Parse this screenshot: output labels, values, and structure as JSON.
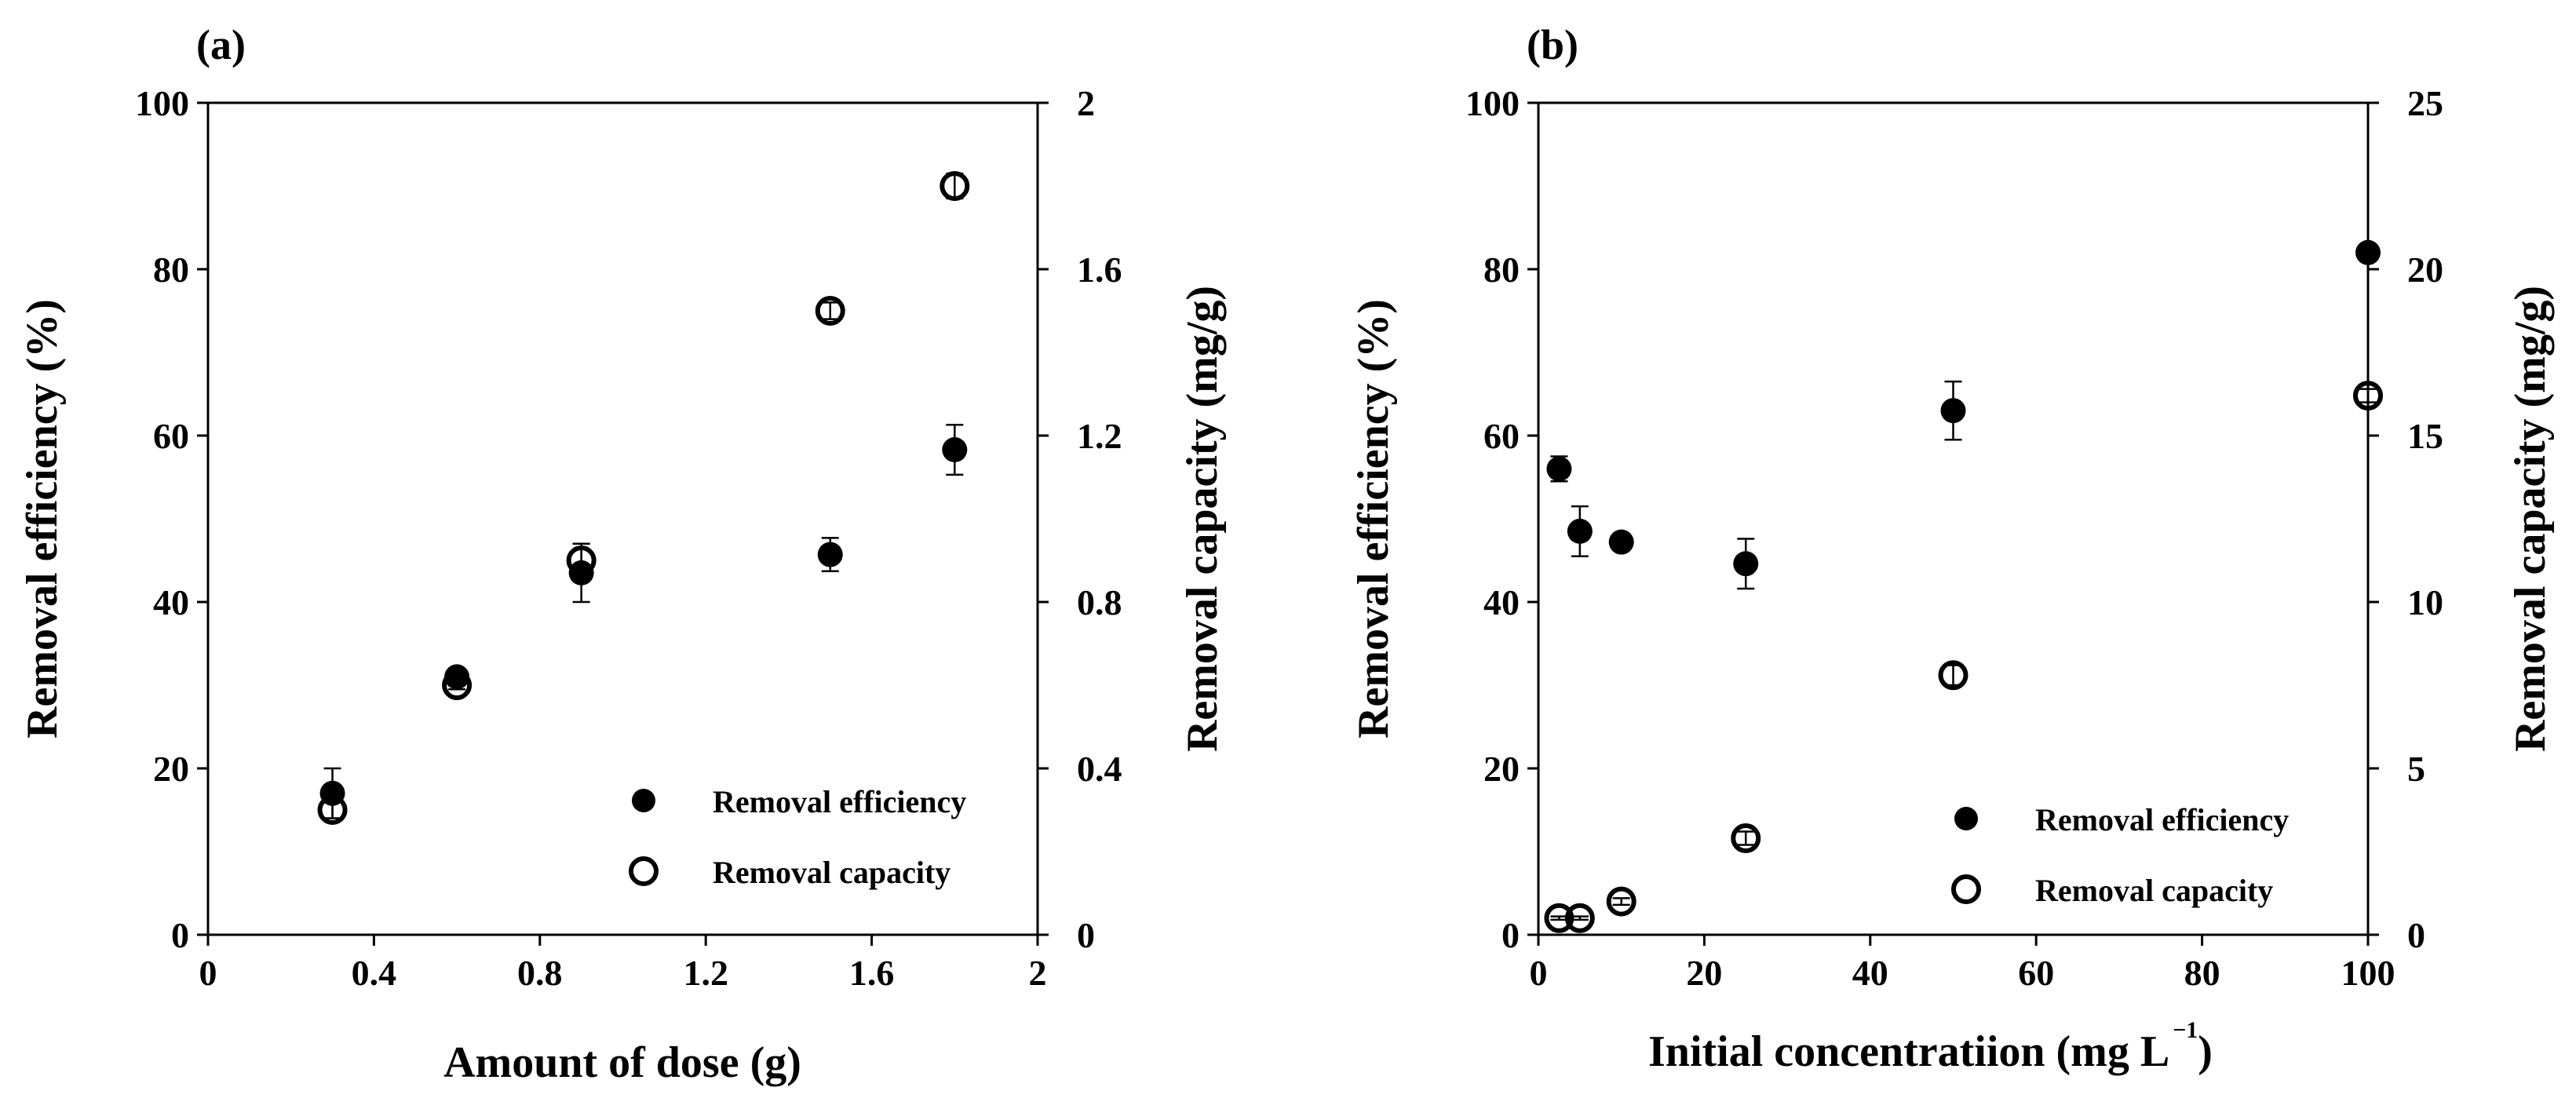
{
  "chart_data": [
    {
      "type": "scatter",
      "panel_label": "(a)",
      "xlabel": "Amount of dose (g)",
      "ylabel_left": "Removal efficiency (%)",
      "ylabel_right": "Removal capacity (mg/g)",
      "xlim": [
        0,
        2
      ],
      "ylim_left": [
        0,
        100
      ],
      "ylim_right": [
        0,
        2
      ],
      "x_ticks": [
        "0",
        "0.4",
        "0.8",
        "1.2",
        "1.6",
        "2"
      ],
      "y_ticks_left": [
        "0",
        "20",
        "40",
        "60",
        "80",
        "100"
      ],
      "y_ticks_right": [
        "0",
        "0.4",
        "0.8",
        "1.2",
        "1.6",
        "2"
      ],
      "legend_position": "bottom-right",
      "series": [
        {
          "name": "Removal efficiency",
          "marker": "filled-circle",
          "axis": "left",
          "x": [
            0.3,
            0.6,
            0.9,
            1.5,
            1.8
          ],
          "y": [
            17,
            31,
            43.5,
            45.7,
            58.3
          ],
          "err": [
            3,
            1,
            3.5,
            2,
            3
          ]
        },
        {
          "name": "Removal capacity",
          "marker": "open-circle",
          "axis": "right",
          "x": [
            0.3,
            0.6,
            0.9,
            1.5,
            1.8
          ],
          "y": [
            0.3,
            0.6,
            0.9,
            1.5,
            1.8
          ],
          "err": [
            0.02,
            0.01,
            0.04,
            0.02,
            0.03
          ]
        }
      ]
    },
    {
      "type": "scatter",
      "panel_label": "(b)",
      "xlabel": "Initial concentratiion (mg L",
      "xlabel_superscript": "−1",
      "xlabel_close": ")",
      "ylabel_left": "Removal efficiency (%)",
      "ylabel_right": "Removal capacity (mg/g)",
      "xlim": [
        0,
        100
      ],
      "ylim_left": [
        0,
        100
      ],
      "ylim_right": [
        0,
        25
      ],
      "x_ticks": [
        "0",
        "20",
        "40",
        "60",
        "80",
        "100"
      ],
      "y_ticks_left": [
        "0",
        "20",
        "40",
        "60",
        "80",
        "100"
      ],
      "y_ticks_right": [
        "0",
        "5",
        "10",
        "15",
        "20",
        "25"
      ],
      "legend_position": "bottom-right",
      "series": [
        {
          "name": "Removal efficiency",
          "marker": "filled-circle",
          "axis": "left",
          "x": [
            2.5,
            5,
            10,
            25,
            50,
            100
          ],
          "y": [
            56,
            48.5,
            47.2,
            44.6,
            63,
            82
          ],
          "err": [
            1.5,
            3,
            0.5,
            3,
            3.5,
            0.8
          ]
        },
        {
          "name": "Removal capacity",
          "marker": "open-circle",
          "axis": "right",
          "x": [
            2.5,
            5,
            10,
            25,
            50,
            100
          ],
          "y": [
            0.5,
            0.5,
            1.0,
            2.9,
            7.8,
            16.2
          ],
          "err": [
            0.05,
            0.05,
            0.1,
            0.2,
            0.3,
            0.2
          ]
        }
      ]
    }
  ]
}
